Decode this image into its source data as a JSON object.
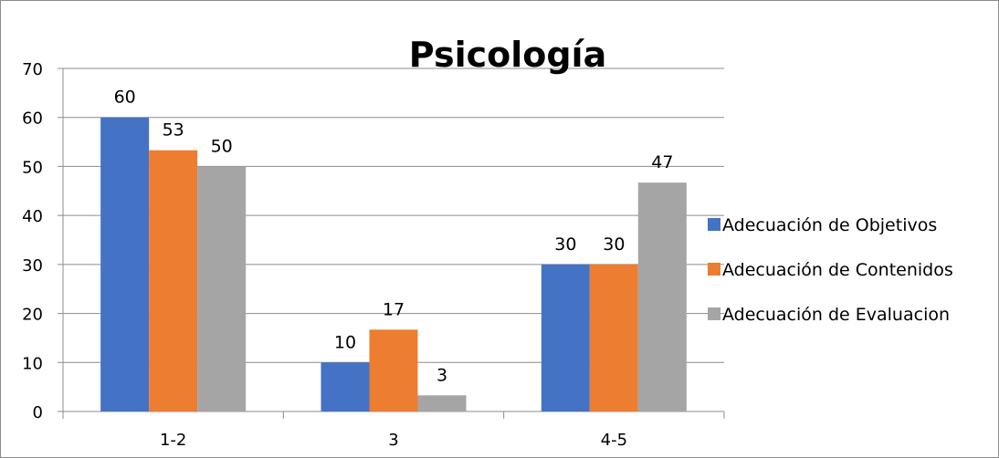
{
  "chart_data": {
    "type": "bar",
    "title": "Psicología",
    "categories": [
      "1-2",
      "3",
      "4-5"
    ],
    "ylim": [
      0,
      70
    ],
    "yticks": [
      0,
      10,
      20,
      30,
      40,
      50,
      60,
      70
    ],
    "grid": true,
    "legend_position": "right",
    "series": [
      {
        "name": "Adecuación de Objetivos",
        "color": "#4472c4",
        "values": [
          60,
          10,
          30
        ],
        "labels": [
          "60",
          "10",
          "30"
        ]
      },
      {
        "name": "Adecuación de Contenidos",
        "color": "#ed7d31",
        "values": [
          53.3,
          16.7,
          30
        ],
        "labels": [
          "53",
          "17",
          "30"
        ]
      },
      {
        "name": "Adecuación de Evaluacion",
        "color": "#a5a5a5",
        "values": [
          50,
          3.3,
          46.7
        ],
        "labels": [
          "50",
          "3",
          "47"
        ]
      }
    ]
  }
}
